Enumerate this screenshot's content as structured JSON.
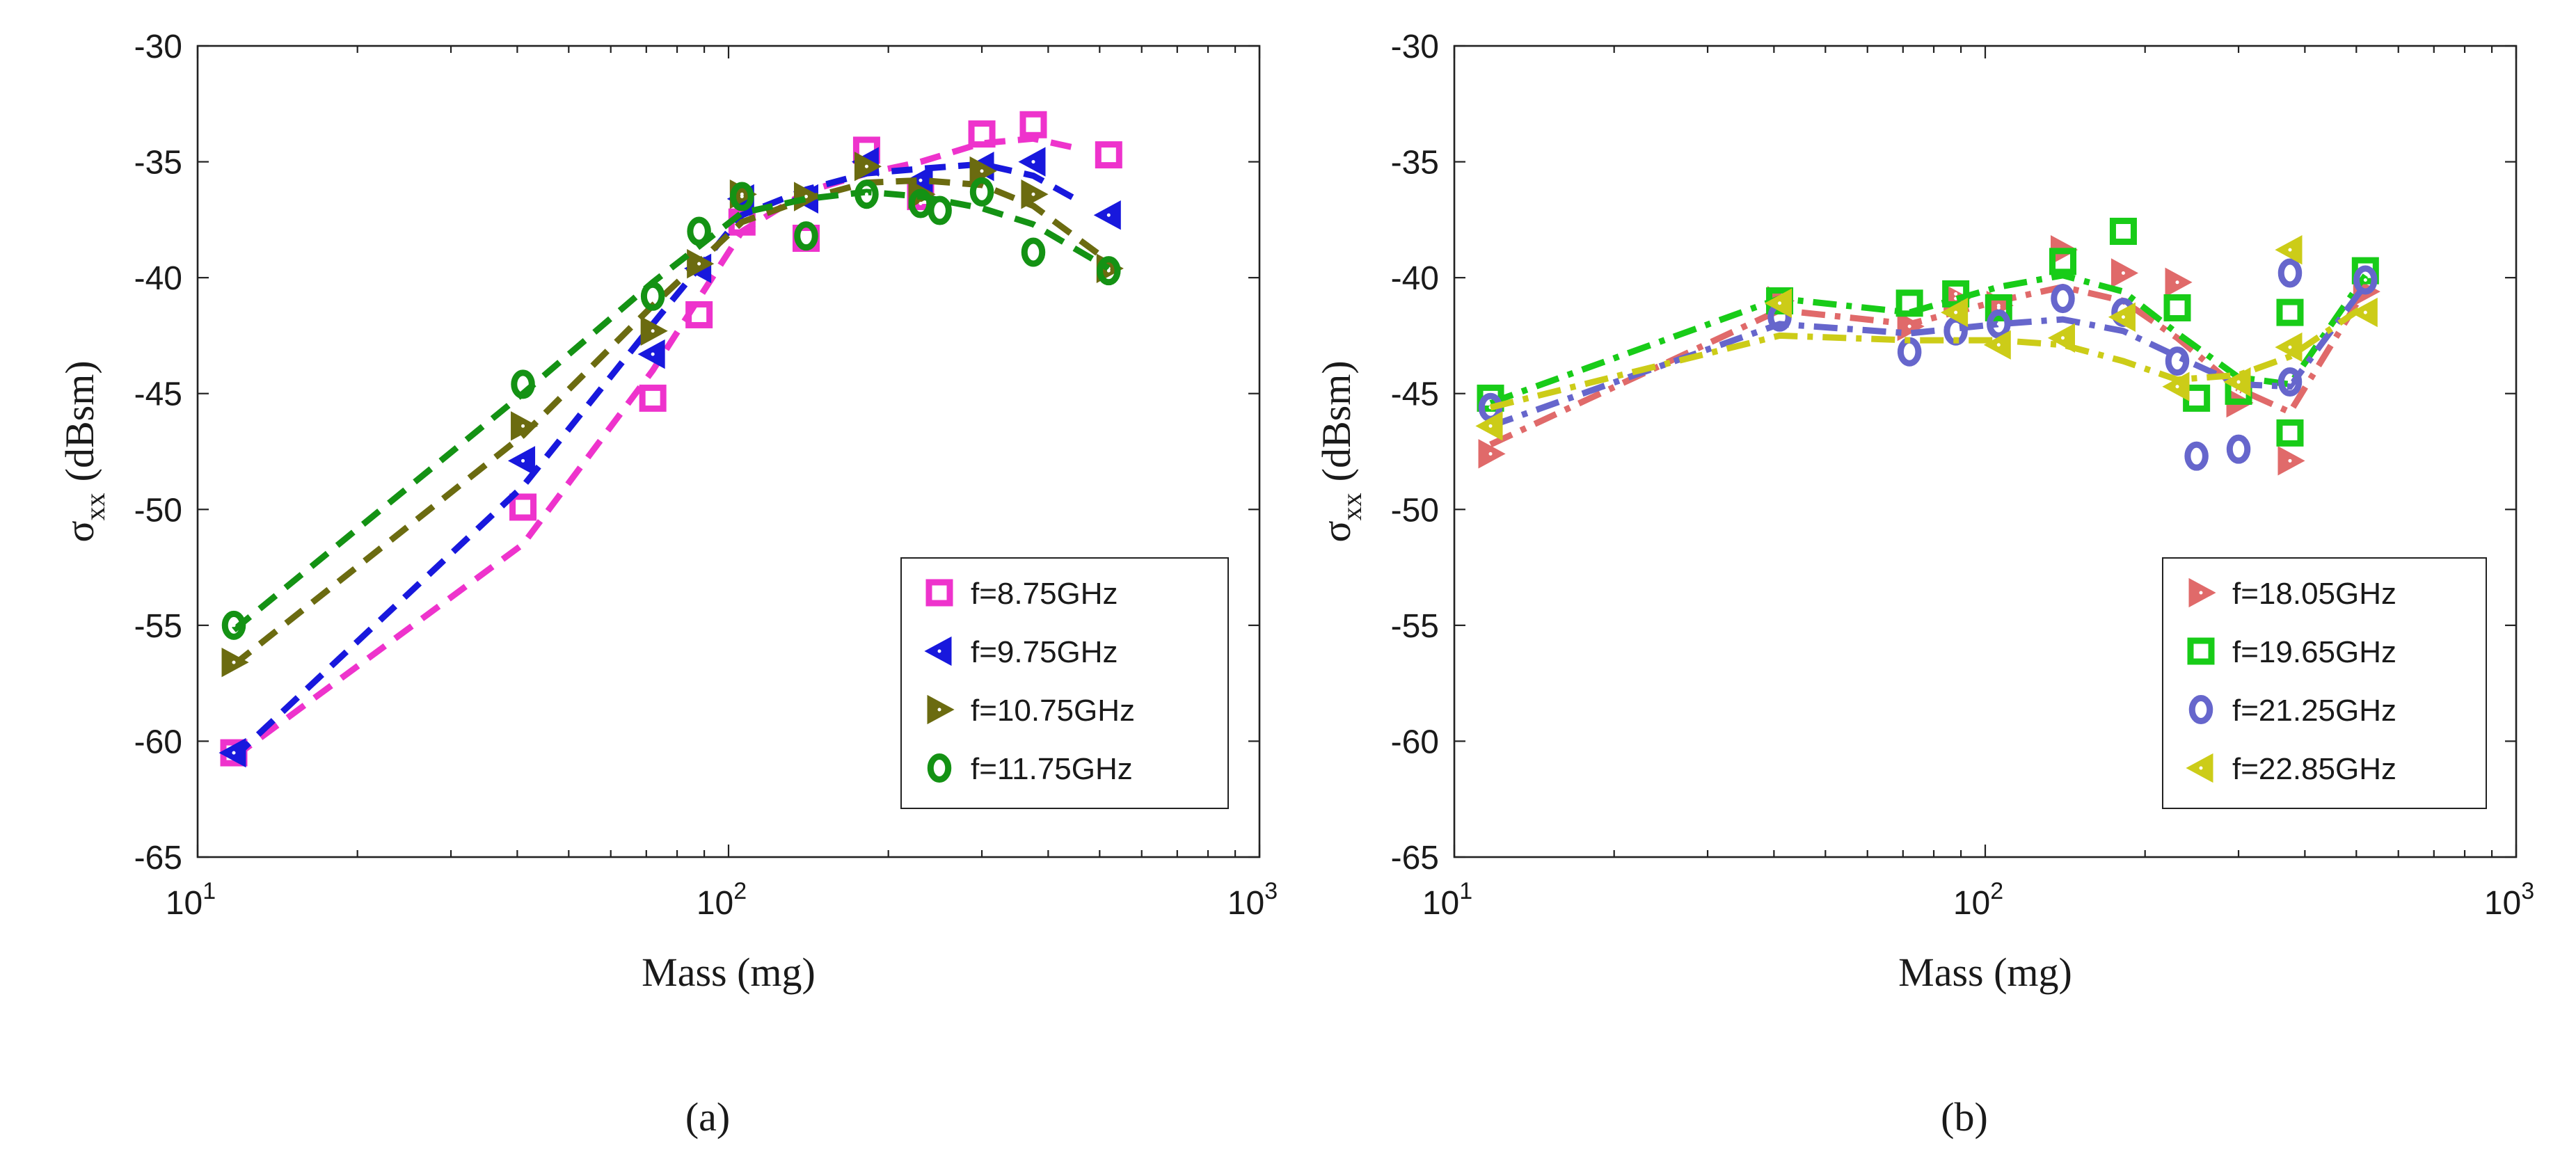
{
  "chart_data": [
    {
      "type": "line",
      "panel_label": "(a)",
      "title": "",
      "xlabel": "Mass (mg)",
      "ylabel_main": "σ",
      "ylabel_sub": "xx",
      "ylabel_unit": "(dBsm)",
      "xscale": "log",
      "xlim": [
        10,
        1000
      ],
      "ylim": [
        -65,
        -30
      ],
      "yticks": [
        -30,
        -35,
        -40,
        -45,
        -50,
        -55,
        -60,
        -65
      ],
      "ytick_labels": [
        "-30",
        "-35",
        "-40",
        "-45",
        "-50",
        "-55",
        "-60",
        "-65"
      ],
      "xtick_bases": [
        "10",
        "10",
        "10"
      ],
      "xtick_exps": [
        "1",
        "2",
        "3"
      ],
      "legend_position": "lower-right",
      "series": [
        {
          "name": "f=8.75GHz",
          "color": "#ee33cc",
          "marker": "square",
          "line": "dashed",
          "points": [
            [
              11.7,
              -60.5
            ],
            [
              41,
              -49.9
            ],
            [
              72,
              -45.2
            ],
            [
              88,
              -41.6
            ],
            [
              106,
              -37.6
            ],
            [
              140,
              -38.3
            ],
            [
              182,
              -34.5
            ],
            [
              230,
              -36.5
            ],
            [
              300,
              -33.8
            ],
            [
              375,
              -33.4
            ],
            [
              520,
              -34.7
            ]
          ],
          "fit": [
            [
              11.7,
              -60.7
            ],
            [
              41,
              -51.5
            ],
            [
              72,
              -44
            ],
            [
              106,
              -38
            ],
            [
              140,
              -36.3
            ],
            [
              182,
              -35.5
            ],
            [
              230,
              -35
            ],
            [
              300,
              -34.2
            ],
            [
              375,
              -34.0
            ],
            [
              450,
              -34.4
            ]
          ]
        },
        {
          "name": "f=9.75GHz",
          "color": "#1818dd",
          "marker": "triangle-left",
          "line": "dashed",
          "points": [
            [
              11.7,
              -60.5
            ],
            [
              41,
              -47.9
            ],
            [
              72,
              -43.3
            ],
            [
              88,
              -39.6
            ],
            [
              106,
              -36.6
            ],
            [
              140,
              -36.6
            ],
            [
              182,
              -35
            ],
            [
              230,
              -35.8
            ],
            [
              300,
              -35.2
            ],
            [
              375,
              -35
            ],
            [
              520,
              -37.3
            ]
          ],
          "fit": [
            [
              11.7,
              -60.7
            ],
            [
              41,
              -49
            ],
            [
              72,
              -42
            ],
            [
              106,
              -37.3
            ],
            [
              140,
              -36.2
            ],
            [
              182,
              -35.5
            ],
            [
              230,
              -35.3
            ],
            [
              300,
              -35.1
            ],
            [
              375,
              -35.6
            ],
            [
              450,
              -36.6
            ]
          ]
        },
        {
          "name": "f=10.75GHz",
          "color": "#6b6b10",
          "marker": "triangle-right",
          "line": "dashed",
          "points": [
            [
              11.7,
              -56.6
            ],
            [
              41,
              -46.4
            ],
            [
              72,
              -42.3
            ],
            [
              88,
              -39.4
            ],
            [
              106,
              -36.4
            ],
            [
              140,
              -36.5
            ],
            [
              182,
              -35.2
            ],
            [
              230,
              -36.4
            ],
            [
              300,
              -35.4
            ],
            [
              375,
              -36.4
            ],
            [
              520,
              -39.6
            ]
          ],
          "fit": [
            [
              11.7,
              -56.7
            ],
            [
              41,
              -46.8
            ],
            [
              72,
              -41.2
            ],
            [
              106,
              -37.6
            ],
            [
              140,
              -36.6
            ],
            [
              182,
              -35.9
            ],
            [
              230,
              -35.8
            ],
            [
              300,
              -36
            ],
            [
              375,
              -36.9
            ],
            [
              520,
              -39.3
            ]
          ]
        },
        {
          "name": "f=11.75GHz",
          "color": "#149214",
          "marker": "circle",
          "line": "dashed",
          "points": [
            [
              11.7,
              -55
            ],
            [
              41,
              -44.6
            ],
            [
              72,
              -40.8
            ],
            [
              88,
              -38
            ],
            [
              106,
              -36.5
            ],
            [
              140,
              -38.2
            ],
            [
              182,
              -36.4
            ],
            [
              230,
              -36.8
            ],
            [
              250,
              -37.1
            ],
            [
              300,
              -36.3
            ],
            [
              375,
              -38.9
            ],
            [
              520,
              -39.7
            ]
          ],
          "fit": [
            [
              11.7,
              -55.2
            ],
            [
              41,
              -45
            ],
            [
              72,
              -40.2
            ],
            [
              106,
              -37.2
            ],
            [
              140,
              -36.6
            ],
            [
              182,
              -36.3
            ],
            [
              230,
              -36.5
            ],
            [
              300,
              -37
            ],
            [
              375,
              -37.7
            ],
            [
              520,
              -39.6
            ]
          ]
        }
      ]
    },
    {
      "type": "line",
      "panel_label": "(b)",
      "title": "",
      "xlabel": "Mass (mg)",
      "ylabel_main": "σ",
      "ylabel_sub": "xx",
      "ylabel_unit": "(dBsm)",
      "xscale": "log",
      "xlim": [
        10,
        1000
      ],
      "ylim": [
        -65,
        -30
      ],
      "yticks": [
        -30,
        -35,
        -40,
        -45,
        -50,
        -55,
        -60,
        -65
      ],
      "ytick_labels": [
        "-30",
        "-35",
        "-40",
        "-45",
        "-50",
        "-55",
        "-60",
        "-65"
      ],
      "xtick_bases": [
        "10",
        "10",
        "10"
      ],
      "xtick_exps": [
        "1",
        "2",
        "3"
      ],
      "legend_position": "lower-right",
      "series": [
        {
          "name": "f=18.05GHz",
          "color": "#e06a6a",
          "marker": "triangle-right",
          "line": "dashdot",
          "points": [
            [
              11.7,
              -47.6
            ],
            [
              41,
              -41
            ],
            [
              72,
              -42.1
            ],
            [
              88,
              -40.9
            ],
            [
              106,
              -41.2
            ],
            [
              140,
              -38.8
            ],
            [
              182,
              -39.8
            ],
            [
              230,
              -40.2
            ],
            [
              300,
              -45.4
            ],
            [
              375,
              -47.9
            ],
            [
              520,
              -40.6
            ]
          ],
          "fit": [
            [
              11.7,
              -47.2
            ],
            [
              41,
              -41.4
            ],
            [
              72,
              -42
            ],
            [
              106,
              -41
            ],
            [
              140,
              -40.4
            ],
            [
              182,
              -41
            ],
            [
              230,
              -42.6
            ],
            [
              300,
              -44.8
            ],
            [
              375,
              -45.8
            ],
            [
              520,
              -40.5
            ]
          ]
        },
        {
          "name": "f=19.65GHz",
          "color": "#18cc18",
          "marker": "square",
          "line": "dashdot",
          "points": [
            [
              11.7,
              -45.2
            ],
            [
              41,
              -41
            ],
            [
              72,
              -41.1
            ],
            [
              88,
              -40.7
            ],
            [
              106,
              -41.3
            ],
            [
              140,
              -39.3
            ],
            [
              182,
              -38
            ],
            [
              230,
              -41.3
            ],
            [
              250,
              -45.2
            ],
            [
              300,
              -44.9
            ],
            [
              375,
              -41.5
            ],
            [
              375,
              -46.7
            ],
            [
              520,
              -39.7
            ]
          ],
          "fit": [
            [
              11.7,
              -45.4
            ],
            [
              41,
              -40.9
            ],
            [
              72,
              -41.5
            ],
            [
              106,
              -40.4
            ],
            [
              140,
              -39.9
            ],
            [
              182,
              -40.6
            ],
            [
              230,
              -42.4
            ],
            [
              300,
              -44.3
            ],
            [
              375,
              -44.6
            ],
            [
              520,
              -39.9
            ]
          ]
        },
        {
          "name": "f=21.25GHz",
          "color": "#6666cc",
          "marker": "circle",
          "line": "dashdot",
          "points": [
            [
              11.7,
              -45.6
            ],
            [
              41,
              -41.7
            ],
            [
              72,
              -43.2
            ],
            [
              88,
              -42.3
            ],
            [
              106,
              -42
            ],
            [
              140,
              -40.9
            ],
            [
              182,
              -41.5
            ],
            [
              230,
              -43.6
            ],
            [
              250,
              -47.7
            ],
            [
              300,
              -47.4
            ],
            [
              375,
              -44.5
            ],
            [
              375,
              -39.8
            ],
            [
              520,
              -40.1
            ]
          ],
          "fit": [
            [
              11.7,
              -46.4
            ],
            [
              41,
              -42
            ],
            [
              72,
              -42.4
            ],
            [
              106,
              -42
            ],
            [
              140,
              -41.8
            ],
            [
              182,
              -42.3
            ],
            [
              230,
              -43.4
            ],
            [
              300,
              -44.6
            ],
            [
              375,
              -44.7
            ],
            [
              520,
              -40.3
            ]
          ]
        },
        {
          "name": "f=22.85GHz",
          "color": "#cccc18",
          "marker": "triangle-left",
          "line": "dashdot",
          "points": [
            [
              11.7,
              -46.4
            ],
            [
              41,
              -41.1
            ],
            [
              88,
              -41.5
            ],
            [
              106,
              -42.9
            ],
            [
              140,
              -42.6
            ],
            [
              182,
              -41.7
            ],
            [
              230,
              -44.7
            ],
            [
              300,
              -44.5
            ],
            [
              375,
              -43
            ],
            [
              375,
              -38.8
            ],
            [
              520,
              -41.5
            ]
          ],
          "fit": [
            [
              11.7,
              -45.6
            ],
            [
              41,
              -42.5
            ],
            [
              72,
              -42.7
            ],
            [
              106,
              -42.7
            ],
            [
              140,
              -42.9
            ],
            [
              182,
              -43.6
            ],
            [
              230,
              -44.4
            ],
            [
              300,
              -44.2
            ],
            [
              375,
              -43.4
            ],
            [
              520,
              -41.2
            ]
          ]
        }
      ]
    }
  ]
}
